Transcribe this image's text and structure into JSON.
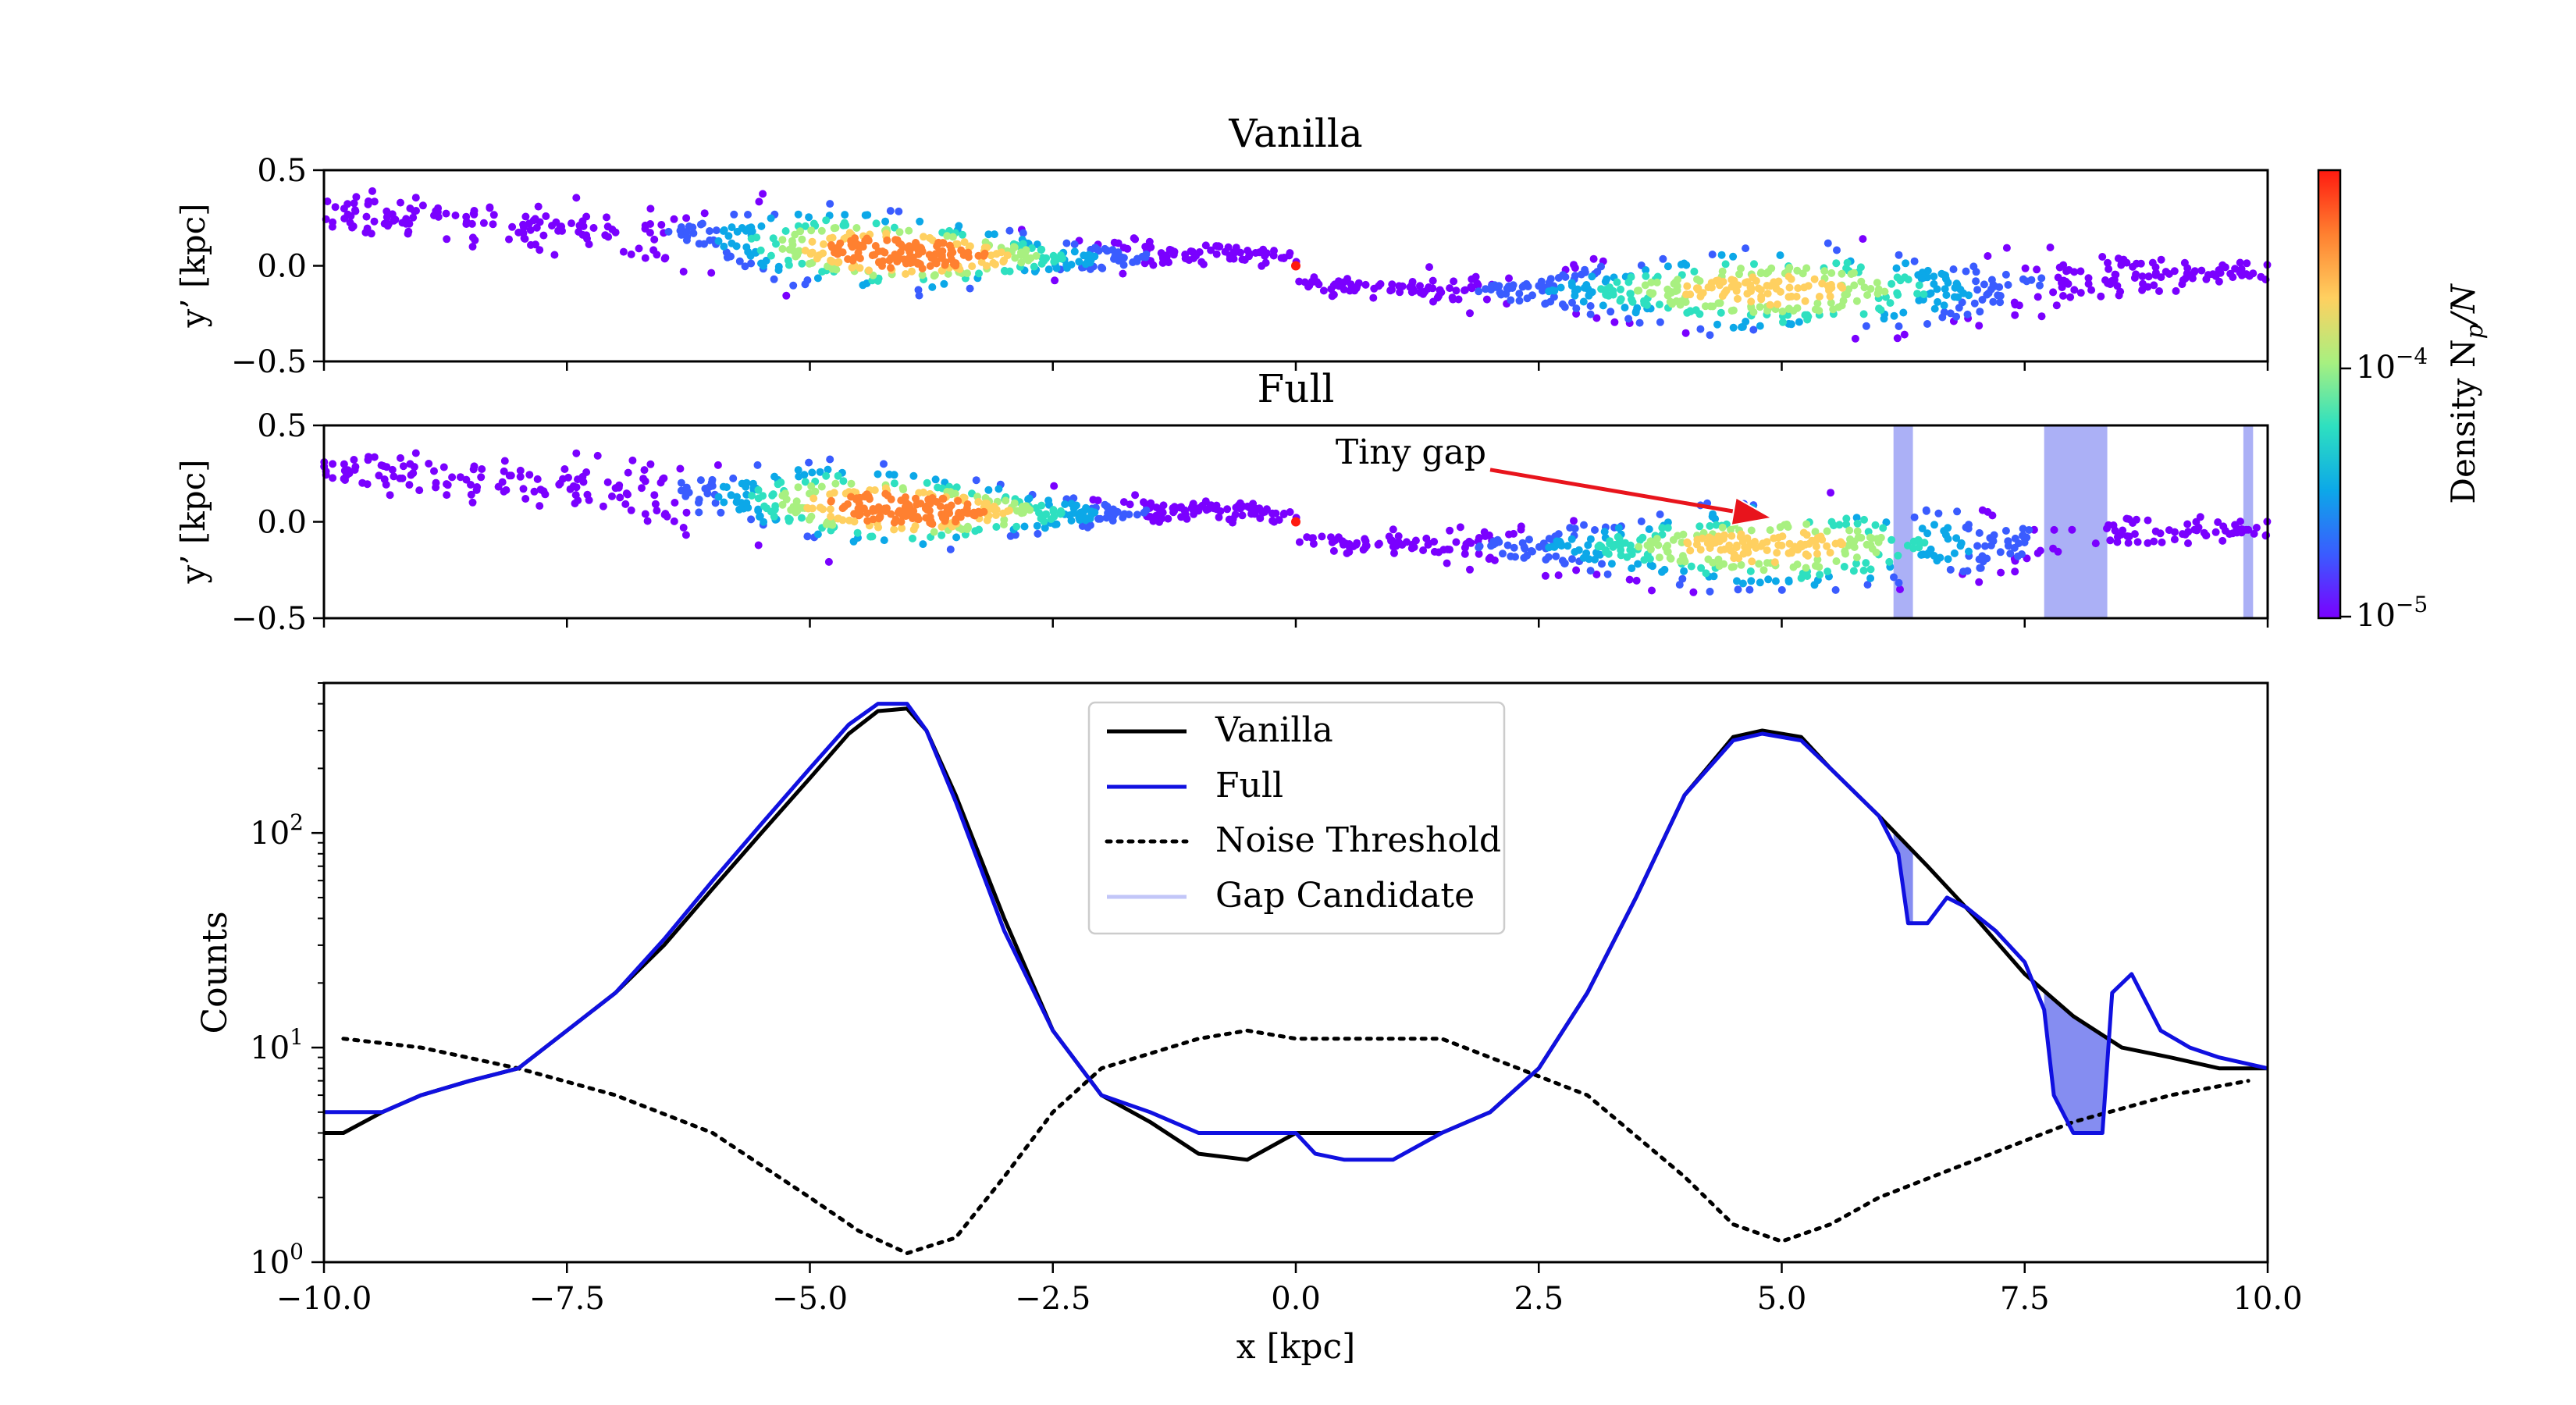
{
  "colors": {
    "black": "#000000",
    "full": "#1010e0",
    "gap": "#6670ee",
    "arrow": "#e8141c",
    "cmap": [
      "#7a00ff",
      "#3a5cff",
      "#0ca8e8",
      "#2ee0c0",
      "#a8f080",
      "#ffd060",
      "#ff8030",
      "#ff1a10"
    ]
  },
  "chart_data": [
    {
      "panel": "top",
      "type": "scatter",
      "title": "Vanilla",
      "xlim": [
        -10,
        10
      ],
      "ylim": [
        -0.5,
        0.5
      ],
      "ylabel": "y’ [kpc]",
      "yticks": [
        "0.5",
        "0.0",
        "−0.5"
      ],
      "stream_track": [
        [
          -10,
          0.27
        ],
        [
          -8,
          0.22
        ],
        [
          -6,
          0.14
        ],
        [
          -4,
          0.06
        ],
        [
          -2,
          0.04
        ],
        [
          -0.5,
          0.07
        ],
        [
          0,
          0.02
        ],
        [
          0.05,
          -0.1
        ],
        [
          2,
          -0.13
        ],
        [
          4,
          -0.13
        ],
        [
          5,
          -0.13
        ],
        [
          7,
          -0.11
        ],
        [
          10,
          -0.03
        ]
      ],
      "density_peaks": [
        [
          -4,
          0.07
        ],
        [
          4.8,
          -0.12
        ]
      ]
    },
    {
      "panel": "middle",
      "type": "scatter",
      "title": "Full",
      "xlim": [
        -10,
        10
      ],
      "ylim": [
        -0.5,
        0.5
      ],
      "ylabel": "y’ [kpc]",
      "yticks": [
        "0.5",
        "0.0",
        "−0.5"
      ],
      "annotation": {
        "text": "Tiny gap",
        "from": [
          2.0,
          0.27
        ],
        "to": [
          4.9,
          0.02
        ]
      },
      "gap_regions": [
        [
          6.15,
          6.35
        ],
        [
          7.7,
          8.35
        ],
        [
          9.75,
          9.85
        ]
      ],
      "stream_track": [
        [
          -10,
          0.27
        ],
        [
          -8,
          0.22
        ],
        [
          -6,
          0.14
        ],
        [
          -4,
          0.06
        ],
        [
          -2,
          0.04
        ],
        [
          -0.5,
          0.07
        ],
        [
          0,
          0.02
        ],
        [
          0.05,
          -0.1
        ],
        [
          2,
          -0.13
        ],
        [
          4,
          -0.13
        ],
        [
          5,
          -0.13
        ],
        [
          7,
          -0.11
        ],
        [
          10,
          -0.03
        ]
      ],
      "density_peaks": [
        [
          -4,
          0.07
        ],
        [
          4.8,
          -0.12
        ]
      ]
    },
    {
      "panel": "bottom",
      "type": "line",
      "xlim": [
        -10,
        10
      ],
      "ylim": [
        1,
        500
      ],
      "yscale": "log",
      "xlabel": "x [kpc]",
      "ylabel": "Counts",
      "xticks": [
        "−10.0",
        "−7.5",
        "−5.0",
        "−2.5",
        "0.0",
        "2.5",
        "5.0",
        "7.5",
        "10.0"
      ],
      "yticks": [
        "10",
        "10",
        "10"
      ],
      "ytick_exponents": [
        "0",
        "1",
        "2"
      ],
      "legend": "upper-center",
      "series": [
        {
          "name": "Vanilla",
          "style": "solid-black",
          "x": [
            -10,
            -9.8,
            -9.4,
            -9.0,
            -8.5,
            -8.0,
            -7.5,
            -7.0,
            -6.5,
            -6.0,
            -5.5,
            -5.0,
            -4.6,
            -4.3,
            -4.0,
            -3.8,
            -3.5,
            -3.0,
            -2.5,
            -2.0,
            -1.5,
            -1.0,
            -0.5,
            0.0,
            0.5,
            1.0,
            1.5,
            2.0,
            2.5,
            3.0,
            3.5,
            4.0,
            4.5,
            4.8,
            5.2,
            5.5,
            6.0,
            6.5,
            7.0,
            7.5,
            8.0,
            8.5,
            9.0,
            9.5,
            10.0
          ],
          "y": [
            4,
            4,
            5,
            6,
            7,
            8,
            12,
            18,
            30,
            55,
            100,
            180,
            290,
            370,
            380,
            300,
            150,
            40,
            12,
            6,
            4.5,
            3.2,
            3,
            4,
            4,
            4,
            4,
            5,
            8,
            18,
            50,
            150,
            280,
            300,
            280,
            200,
            120,
            70,
            40,
            22,
            14,
            10,
            9,
            8,
            8
          ]
        },
        {
          "name": "Full",
          "style": "solid-blue",
          "x": [
            -10,
            -9.8,
            -9.4,
            -9.0,
            -8.5,
            -8.0,
            -7.5,
            -7.0,
            -6.5,
            -6.0,
            -5.5,
            -5.0,
            -4.6,
            -4.3,
            -4.0,
            -3.8,
            -3.5,
            -3.0,
            -2.5,
            -2.0,
            -1.5,
            -1.0,
            -0.5,
            0.0,
            0.2,
            0.5,
            1.0,
            1.5,
            2.0,
            2.5,
            3.0,
            3.5,
            4.0,
            4.5,
            4.8,
            5.2,
            5.5,
            6.0,
            6.2,
            6.3,
            6.5,
            6.7,
            6.9,
            7.2,
            7.5,
            7.7,
            7.8,
            8.0,
            8.3,
            8.4,
            8.6,
            8.9,
            9.2,
            9.5,
            10.0
          ],
          "y": [
            5,
            5,
            5,
            6,
            7,
            8,
            12,
            18,
            32,
            60,
            110,
            200,
            320,
            400,
            400,
            300,
            140,
            35,
            12,
            6,
            5,
            4,
            4,
            4,
            3.2,
            3,
            3,
            4,
            5,
            8,
            18,
            50,
            150,
            270,
            290,
            270,
            200,
            120,
            80,
            38,
            38,
            50,
            45,
            35,
            25,
            15,
            6,
            4,
            4,
            18,
            22,
            12,
            10,
            9,
            8
          ]
        },
        {
          "name": "Noise Threshold",
          "style": "dotted-black",
          "x": [
            -9.8,
            -9.0,
            -8.0,
            -7.0,
            -6.0,
            -5.0,
            -4.5,
            -4.0,
            -3.5,
            -3.0,
            -2.5,
            -2.0,
            -1.0,
            -0.5,
            0.0,
            1.0,
            1.5,
            2.0,
            3.0,
            4.0,
            4.5,
            5.0,
            5.5,
            6.0,
            7.0,
            8.0,
            9.0,
            9.8
          ],
          "y": [
            11,
            10,
            8,
            6,
            4,
            2,
            1.4,
            1.1,
            1.3,
            2.5,
            5,
            8,
            11,
            12,
            11,
            11,
            11,
            9,
            6,
            2.5,
            1.5,
            1.25,
            1.5,
            2,
            3,
            4.5,
            6,
            7
          ]
        },
        {
          "name": "Gap Candidate",
          "style": "fill-light"
        }
      ]
    },
    {
      "panel": "colorbar",
      "type": "colorbar",
      "label": "Density N",
      "label_sub": "p",
      "label_rest": "/N",
      "scale": "log",
      "ticks": [
        "10",
        "10"
      ],
      "tick_exponents": [
        "−5",
        "−4"
      ]
    }
  ]
}
